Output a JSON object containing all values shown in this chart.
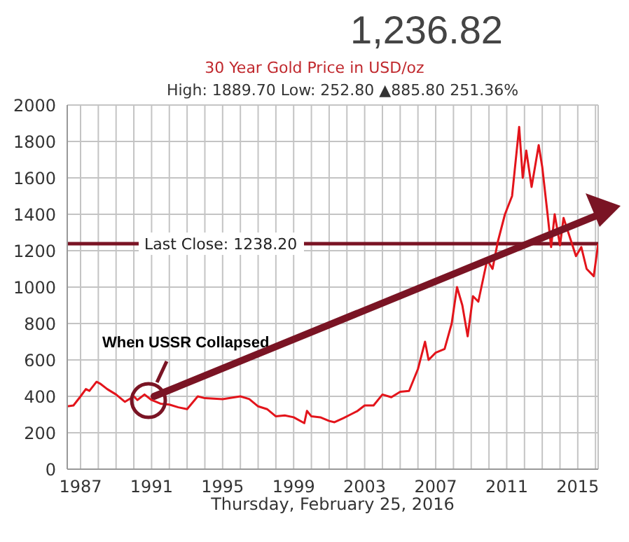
{
  "chart_data": {
    "type": "line",
    "title": "30 Year Gold Price in USD/oz",
    "subtitle": "High: 1889.70 Low: 252.80 ▲885.80 251.36%",
    "annotations": [
      "1,236.82",
      "Thursday, February 25, 2016",
      "When USSR Collapsed"
    ],
    "x": [
      1986.25,
      1986.6,
      1987.0,
      1987.3,
      1987.5,
      1987.9,
      1988.1,
      1988.5,
      1989.0,
      1989.5,
      1990.0,
      1990.2,
      1990.6,
      1991.0,
      1991.5,
      1992.0,
      1992.5,
      1993.0,
      1993.6,
      1994.0,
      1995.0,
      1996.0,
      1996.5,
      1997.0,
      1997.5,
      1998.0,
      1998.5,
      1999.0,
      1999.6,
      1999.75,
      2000.0,
      2000.5,
      2001.0,
      2001.3,
      2001.8,
      2002.2,
      2002.6,
      2003.0,
      2003.5,
      2004.0,
      2004.5,
      2005.0,
      2005.5,
      2006.0,
      2006.4,
      2006.6,
      2007.0,
      2007.5,
      2007.9,
      2008.2,
      2008.5,
      2008.8,
      2009.1,
      2009.4,
      2009.9,
      2010.2,
      2010.5,
      2010.9,
      2011.3,
      2011.7,
      2011.9,
      2012.1,
      2012.4,
      2012.8,
      2013.0,
      2013.3,
      2013.5,
      2013.7,
      2014.0,
      2014.2,
      2014.9,
      2015.2,
      2015.5,
      2015.9,
      2016.15
    ],
    "series": [
      {
        "color": "#e3141b",
        "values": [
          345,
          350,
          400,
          440,
          430,
          480,
          470,
          440,
          410,
          370,
          400,
          380,
          410,
          380,
          360,
          355,
          340,
          330,
          400,
          390,
          385,
          400,
          385,
          345,
          330,
          290,
          295,
          285,
          253,
          320,
          290,
          285,
          265,
          258,
          280,
          300,
          320,
          350,
          350,
          410,
          395,
          425,
          430,
          550,
          700,
          600,
          640,
          660,
          800,
          1000,
          900,
          730,
          950,
          920,
          1150,
          1100,
          1250,
          1400,
          1500,
          1880,
          1600,
          1750,
          1550,
          1780,
          1660,
          1400,
          1220,
          1400,
          1230,
          1380,
          1170,
          1220,
          1100,
          1060,
          1238
        ]
      }
    ],
    "xlim": [
      1986.25,
      2016.15
    ],
    "xticks": [
      1987,
      {
        "value": 1988,
        "label": null
      },
      {
        "value": 1989,
        "label": null
      },
      {
        "value": 1990,
        "label": null
      },
      1991,
      {
        "value": 1992,
        "label": null
      },
      {
        "value": 1993,
        "label": null
      },
      {
        "value": 1994,
        "label": null
      },
      1995,
      {
        "value": 1996,
        "label": null
      },
      {
        "value": 1997,
        "label": null
      },
      {
        "value": 1998,
        "label": null
      },
      1999,
      {
        "value": 2000,
        "label": null
      },
      {
        "value": 2001,
        "label": null
      },
      {
        "value": 2002,
        "label": null
      },
      2003,
      {
        "value": 2004,
        "label": null
      },
      {
        "value": 2005,
        "label": null
      },
      {
        "value": 2006,
        "label": null
      },
      2007,
      {
        "value": 2008,
        "label": null
      },
      {
        "value": 2009,
        "label": null
      },
      {
        "value": 2010,
        "label": null
      },
      2011,
      {
        "value": 2012,
        "label": null
      },
      {
        "value": 2013,
        "label": null
      },
      {
        "value": 2014,
        "label": null
      },
      2015,
      {
        "value": 2016,
        "label": null
      }
    ],
    "ylim": [
      0,
      2000
    ],
    "yticks": [
      0,
      200,
      400,
      600,
      800,
      1000,
      1200,
      1400,
      1600,
      1800,
      2000
    ],
    "ref_lines": [
      {
        "axis": "y",
        "value": 1238.2,
        "label": "Last Close: 1238.20",
        "color": "#7a1424"
      }
    ],
    "grid": true,
    "legend": false,
    "marker": "none",
    "line_style": "solid"
  }
}
